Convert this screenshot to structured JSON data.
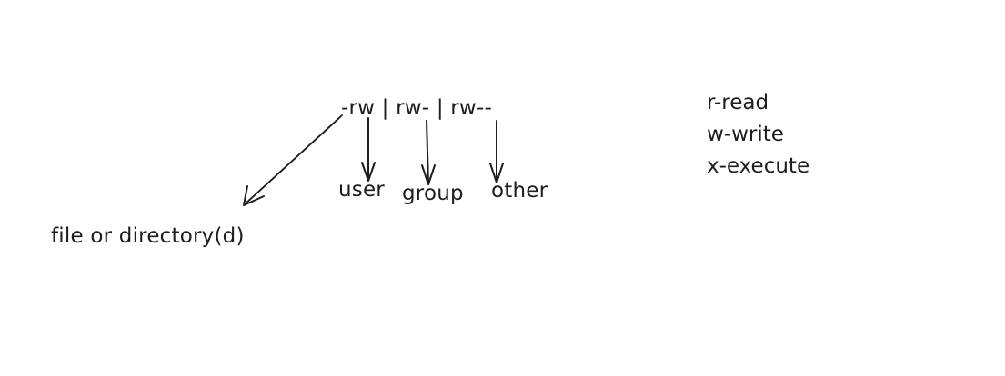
{
  "permissions_string": "-rw | rw- | rw--",
  "targets": {
    "file_type": "file or directory(d)",
    "user": "user",
    "group": "group",
    "other": "other"
  },
  "legend": [
    "r-read",
    "w-write",
    "x-execute"
  ],
  "colors": {
    "ink": "#1e1e1e",
    "background": "#ffffff"
  }
}
